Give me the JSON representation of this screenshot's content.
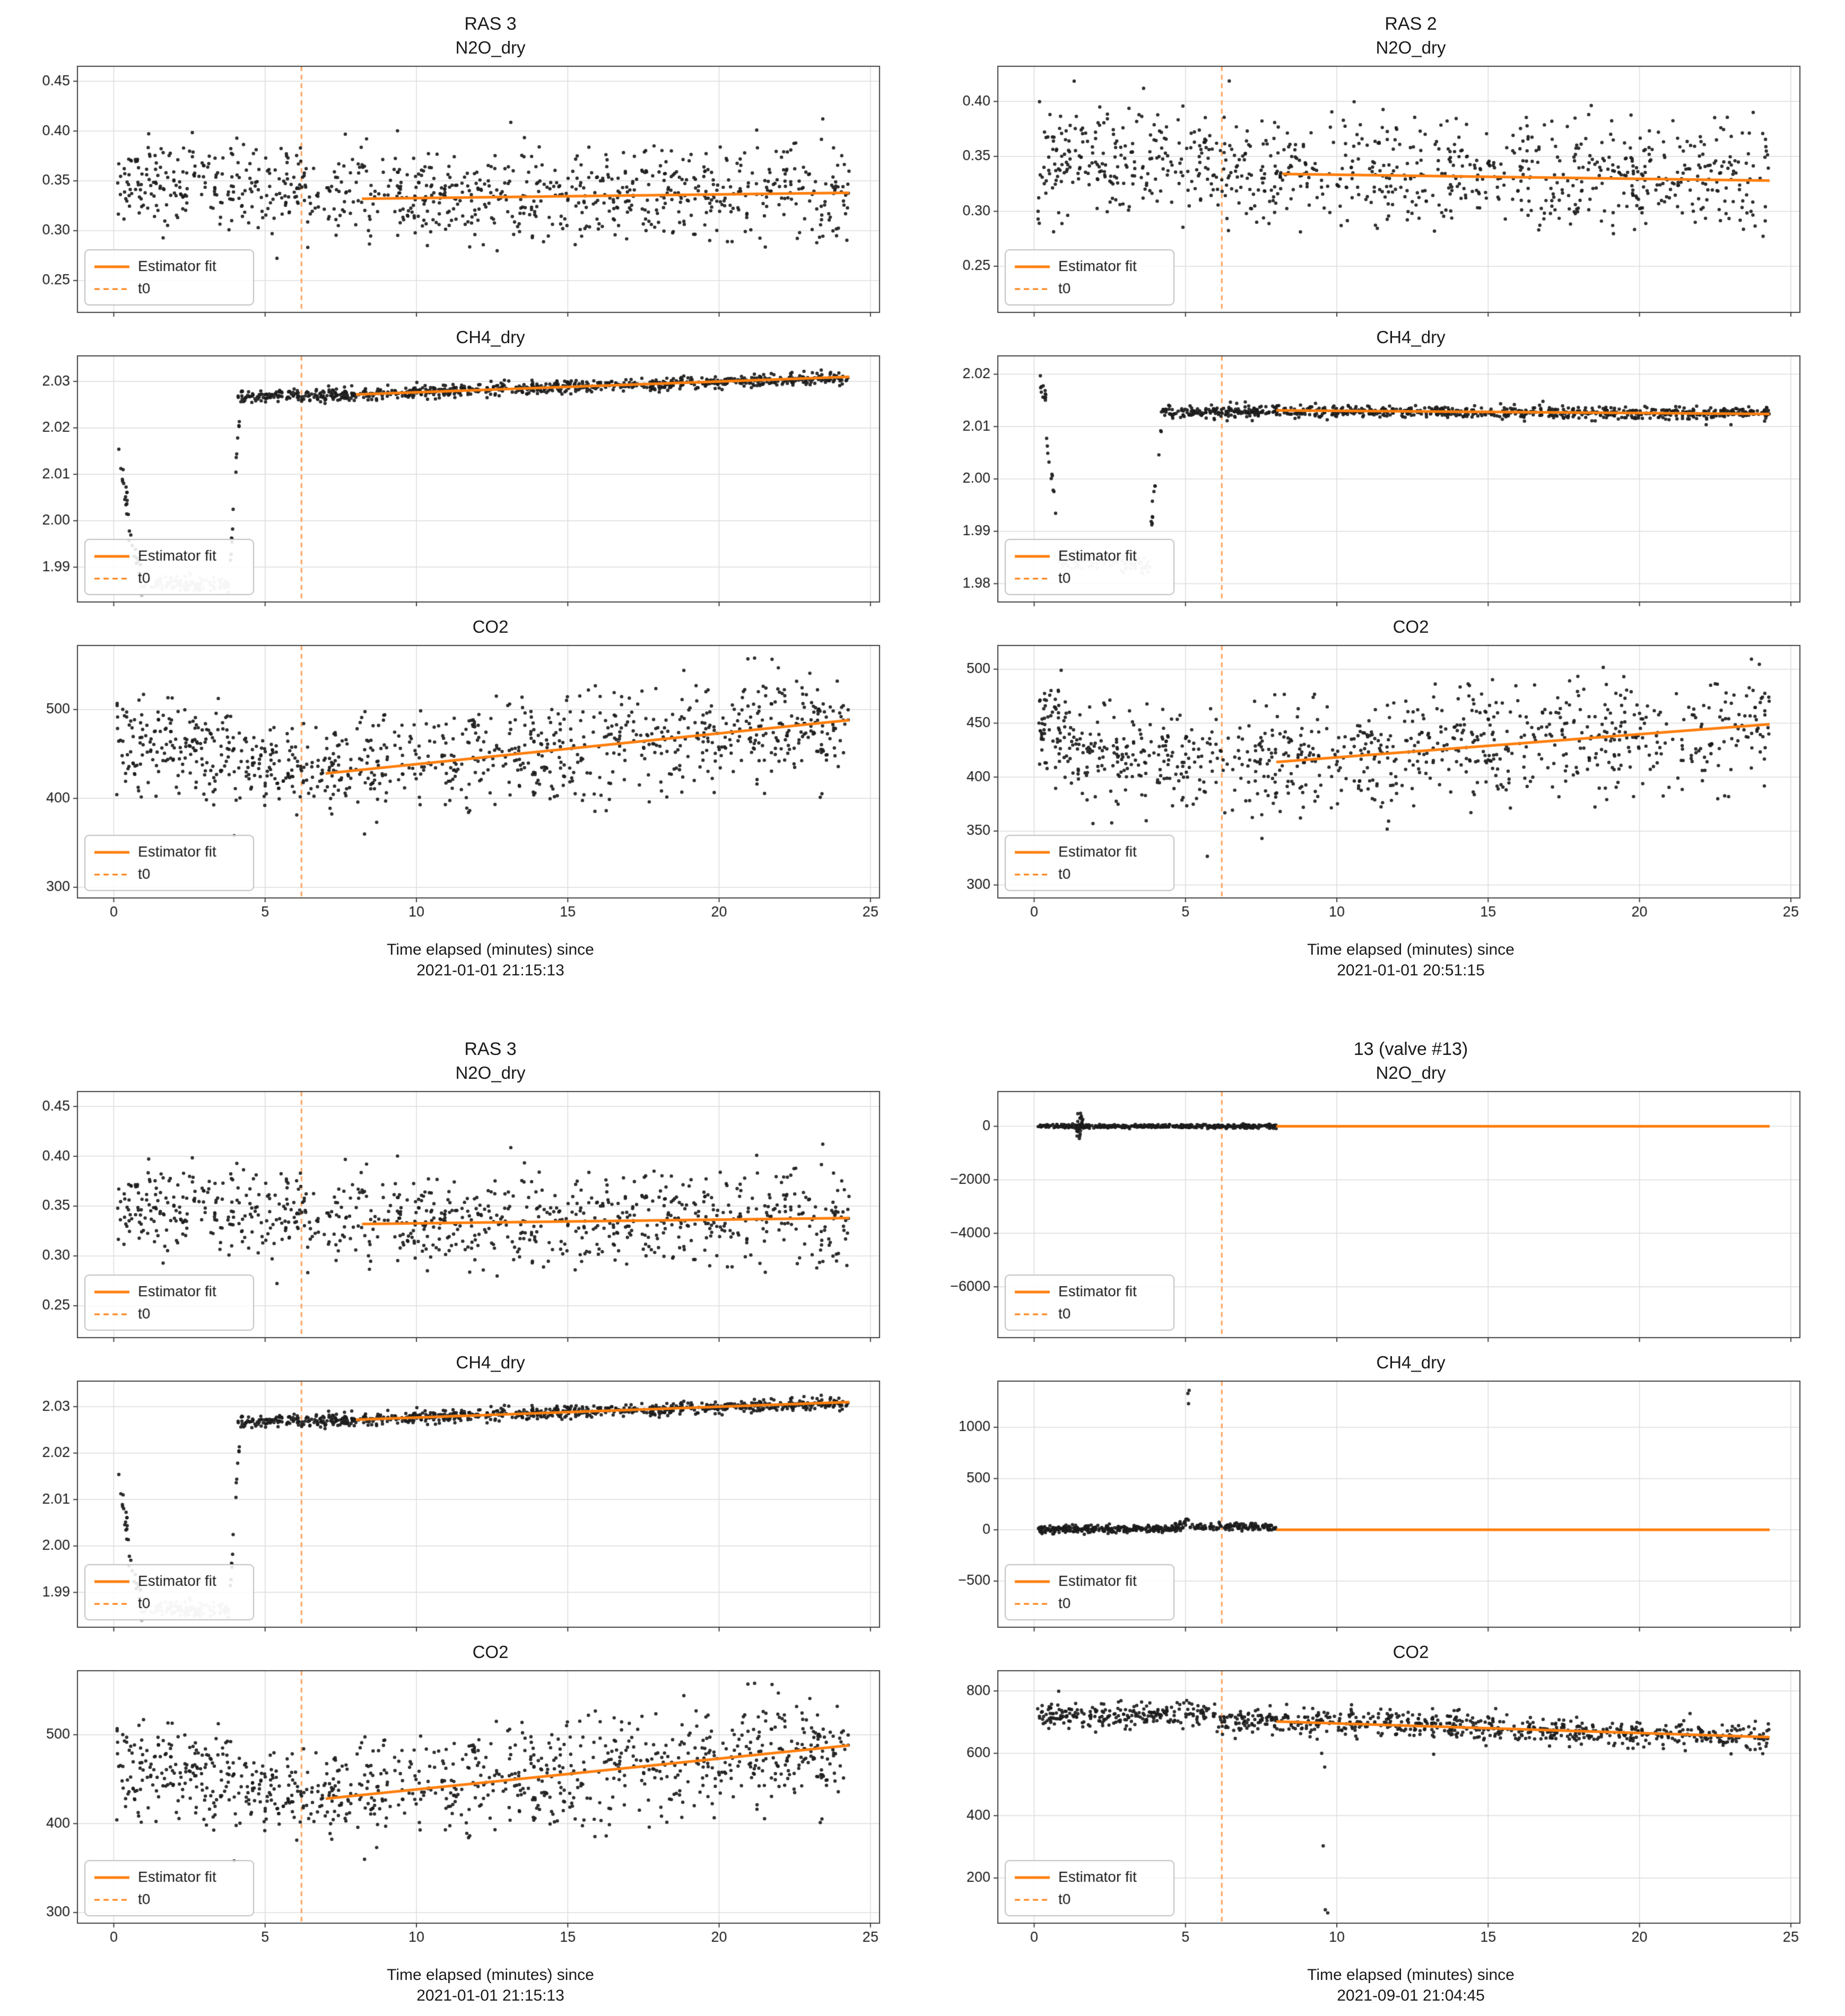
{
  "colors": {
    "accent_orange": "#ff7f0e",
    "t0_orange": "#ffa25c",
    "scatter_black": "#1c1c1c",
    "gray_segment": "#b4b4b4",
    "grid": "#dcdcdc",
    "spine": "#3f3f3f",
    "text": "#1a1a1a",
    "legend_border": "#c0c0c0"
  },
  "legend": {
    "fit_label": "Estimator fit",
    "t0_label": "t0"
  },
  "chart_data": [
    {
      "type": "scatter",
      "title": "RAS 3",
      "xlabel_line1": "Time elapsed (minutes) since",
      "xlabel_line2": "2021-01-01 21:15:13",
      "xlim": [
        -1.2,
        25.3
      ],
      "xticks": [
        0,
        5,
        10,
        15,
        20,
        25
      ],
      "xtick_labels": [
        "0",
        "5",
        "10",
        "15",
        "20",
        "25"
      ],
      "t0": 6.2,
      "subplots": [
        {
          "title": "N2O_dry",
          "ylim": [
            0.218,
            0.465
          ],
          "yticks": [
            0.25,
            0.3,
            0.35,
            0.4,
            0.45
          ],
          "ytick_labels": [
            "0.25",
            "0.30",
            "0.35",
            "0.40",
            "0.45"
          ],
          "fit": {
            "x": [
              8.2,
              24.3
            ],
            "y": [
              0.332,
              0.338
            ]
          },
          "scatter": [
            {
              "x0": 0.1,
              "x1": 6.2,
              "y0": 0.348,
              "y1": 0.344,
              "std": 0.02,
              "n": 230
            },
            {
              "x0": 6.2,
              "x1": 24.3,
              "y0": 0.337,
              "y1": 0.336,
              "std": 0.024,
              "n": 640
            }
          ],
          "points": [],
          "show_xticklabels": false
        },
        {
          "title": "CH4_dry",
          "ylim": [
            1.9825,
            2.0355
          ],
          "yticks": [
            1.99,
            2.0,
            2.01,
            2.02,
            2.03
          ],
          "ytick_labels": [
            "1.99",
            "2.00",
            "2.01",
            "2.02",
            "2.03"
          ],
          "fit": {
            "x": [
              8.0,
              24.3
            ],
            "y": [
              2.0272,
              2.031
            ]
          },
          "scatter": [
            {
              "x0": 0.15,
              "x1": 0.5,
              "y0": 2.013,
              "y1": 2.002,
              "std": 0.0015,
              "n": 16
            },
            {
              "x0": 0.5,
              "x1": 0.9,
              "y0": 1.998,
              "y1": 1.988,
              "std": 0.0015,
              "n": 12
            },
            {
              "x0": 0.9,
              "x1": 3.85,
              "y0": 1.9865,
              "y1": 1.986,
              "std": 0.0009,
              "n": 110,
              "color": "#b4b4b4"
            },
            {
              "x0": 3.85,
              "x1": 4.15,
              "y0": 1.992,
              "y1": 2.022,
              "std": 0.002,
              "n": 14
            },
            {
              "x0": 4.1,
              "x1": 8.0,
              "y0": 2.0267,
              "y1": 2.0272,
              "std": 0.0007,
              "n": 170
            },
            {
              "x0": 8.0,
              "x1": 24.3,
              "y0": 2.0272,
              "y1": 2.0308,
              "std": 0.0007,
              "n": 620
            }
          ],
          "points": [],
          "show_xticklabels": false
        },
        {
          "title": "CO2",
          "ylim": [
            288,
            572
          ],
          "yticks": [
            300,
            400,
            500
          ],
          "ytick_labels": [
            "300",
            "400",
            "500"
          ],
          "fit": {
            "x": [
              7.0,
              24.3
            ],
            "y": [
              428,
              488
            ]
          },
          "scatter": [
            {
              "x0": 0.1,
              "x1": 4.0,
              "y0": 462,
              "y1": 452,
              "std": 28,
              "n": 180
            },
            {
              "x0": 4.0,
              "x1": 8.0,
              "y0": 432,
              "y1": 434,
              "std": 22,
              "n": 160
            },
            {
              "x0": 8.0,
              "x1": 24.3,
              "y0": 436,
              "y1": 486,
              "std": 30,
              "n": 620
            }
          ],
          "points": [],
          "show_xticklabels": true
        }
      ]
    },
    {
      "type": "scatter",
      "title": "RAS 2",
      "xlabel_line1": "Time elapsed (minutes) since",
      "xlabel_line2": "2021-01-01 20:51:15",
      "xlim": [
        -1.2,
        25.3
      ],
      "xticks": [
        0,
        5,
        10,
        15,
        20,
        25
      ],
      "xtick_labels": [
        "0",
        "5",
        "10",
        "15",
        "20",
        "25"
      ],
      "t0": 6.2,
      "subplots": [
        {
          "title": "N2O_dry",
          "ylim": [
            0.208,
            0.432
          ],
          "yticks": [
            0.25,
            0.3,
            0.35,
            0.4
          ],
          "ytick_labels": [
            "0.25",
            "0.30",
            "0.35",
            "0.40"
          ],
          "fit": {
            "x": [
              8.2,
              24.3
            ],
            "y": [
              0.334,
              0.328
            ]
          },
          "scatter": [
            {
              "x0": 0.1,
              "x1": 6.2,
              "y0": 0.35,
              "y1": 0.342,
              "std": 0.024,
              "n": 240
            },
            {
              "x0": 6.2,
              "x1": 24.3,
              "y0": 0.335,
              "y1": 0.327,
              "std": 0.025,
              "n": 640
            }
          ],
          "points": [],
          "show_xticklabels": false
        },
        {
          "title": "CH4_dry",
          "ylim": [
            1.9765,
            2.0235
          ],
          "yticks": [
            1.98,
            1.99,
            2.0,
            2.01,
            2.02
          ],
          "ytick_labels": [
            "1.98",
            "1.99",
            "2.00",
            "2.01",
            "2.02"
          ],
          "fit": {
            "x": [
              8.0,
              24.3
            ],
            "y": [
              2.0131,
              2.0124
            ]
          },
          "scatter": [
            {
              "x0": 0.15,
              "x1": 0.4,
              "y0": 2.02,
              "y1": 2.016,
              "std": 0.0012,
              "n": 12
            },
            {
              "x0": 0.4,
              "x1": 0.8,
              "y0": 2.008,
              "y1": 1.99,
              "std": 0.0015,
              "n": 10
            },
            {
              "x0": 0.8,
              "x1": 3.85,
              "y0": 1.9845,
              "y1": 1.984,
              "std": 0.0009,
              "n": 110,
              "color": "#b4b4b4"
            },
            {
              "x0": 3.85,
              "x1": 4.2,
              "y0": 1.99,
              "y1": 2.008,
              "std": 0.002,
              "n": 12
            },
            {
              "x0": 4.2,
              "x1": 8.0,
              "y0": 2.0126,
              "y1": 2.013,
              "std": 0.0006,
              "n": 170
            },
            {
              "x0": 8.0,
              "x1": 24.3,
              "y0": 2.013,
              "y1": 2.0124,
              "std": 0.0006,
              "n": 620
            }
          ],
          "points": [],
          "show_xticklabels": false
        },
        {
          "title": "CO2",
          "ylim": [
            288,
            522
          ],
          "yticks": [
            300,
            350,
            400,
            450,
            500
          ],
          "ytick_labels": [
            "300",
            "350",
            "400",
            "450",
            "500"
          ],
          "fit": {
            "x": [
              8.0,
              24.3
            ],
            "y": [
              414,
              449
            ]
          },
          "scatter": [
            {
              "x0": 0.1,
              "x1": 1.2,
              "y0": 448,
              "y1": 430,
              "std": 24,
              "n": 70
            },
            {
              "x0": 1.2,
              "x1": 6.2,
              "y0": 426,
              "y1": 410,
              "std": 22,
              "n": 200
            },
            {
              "x0": 6.2,
              "x1": 24.3,
              "y0": 412,
              "y1": 448,
              "std": 26,
              "n": 640
            }
          ],
          "points": [],
          "show_xticklabels": true
        }
      ]
    },
    {
      "type": "scatter",
      "title": "RAS 3",
      "xlabel_line1": "Time elapsed (minutes) since",
      "xlabel_line2": "2021-01-01 21:15:13",
      "xlim": [
        -1.2,
        25.3
      ],
      "xticks": [
        0,
        5,
        10,
        15,
        20,
        25
      ],
      "xtick_labels": [
        "0",
        "5",
        "10",
        "15",
        "20",
        "25"
      ],
      "t0": 6.2,
      "subplots": [
        {
          "title": "N2O_dry",
          "ylim": [
            0.218,
            0.465
          ],
          "yticks": [
            0.25,
            0.3,
            0.35,
            0.4,
            0.45
          ],
          "ytick_labels": [
            "0.25",
            "0.30",
            "0.35",
            "0.40",
            "0.45"
          ],
          "fit": {
            "x": [
              8.2,
              24.3
            ],
            "y": [
              0.332,
              0.338
            ]
          },
          "scatter": [
            {
              "x0": 0.1,
              "x1": 6.2,
              "y0": 0.348,
              "y1": 0.344,
              "std": 0.02,
              "n": 230
            },
            {
              "x0": 6.2,
              "x1": 24.3,
              "y0": 0.337,
              "y1": 0.336,
              "std": 0.024,
              "n": 640
            }
          ],
          "points": [],
          "show_xticklabels": false
        },
        {
          "title": "CH4_dry",
          "ylim": [
            1.9825,
            2.0355
          ],
          "yticks": [
            1.99,
            2.0,
            2.01,
            2.02,
            2.03
          ],
          "ytick_labels": [
            "1.99",
            "2.00",
            "2.01",
            "2.02",
            "2.03"
          ],
          "fit": {
            "x": [
              8.0,
              24.3
            ],
            "y": [
              2.0272,
              2.031
            ]
          },
          "scatter": [
            {
              "x0": 0.15,
              "x1": 0.5,
              "y0": 2.013,
              "y1": 2.002,
              "std": 0.0015,
              "n": 16
            },
            {
              "x0": 0.5,
              "x1": 0.9,
              "y0": 1.998,
              "y1": 1.988,
              "std": 0.0015,
              "n": 12
            },
            {
              "x0": 0.9,
              "x1": 3.85,
              "y0": 1.9865,
              "y1": 1.986,
              "std": 0.0009,
              "n": 110,
              "color": "#b4b4b4"
            },
            {
              "x0": 3.85,
              "x1": 4.15,
              "y0": 1.992,
              "y1": 2.022,
              "std": 0.002,
              "n": 14
            },
            {
              "x0": 4.1,
              "x1": 8.0,
              "y0": 2.0267,
              "y1": 2.0272,
              "std": 0.0007,
              "n": 170
            },
            {
              "x0": 8.0,
              "x1": 24.3,
              "y0": 2.0272,
              "y1": 2.0308,
              "std": 0.0007,
              "n": 620
            }
          ],
          "points": [],
          "show_xticklabels": false
        },
        {
          "title": "CO2",
          "ylim": [
            288,
            572
          ],
          "yticks": [
            300,
            400,
            500
          ],
          "ytick_labels": [
            "300",
            "400",
            "500"
          ],
          "fit": {
            "x": [
              7.0,
              24.3
            ],
            "y": [
              428,
              488
            ]
          },
          "scatter": [
            {
              "x0": 0.1,
              "x1": 4.0,
              "y0": 462,
              "y1": 452,
              "std": 28,
              "n": 180
            },
            {
              "x0": 4.0,
              "x1": 8.0,
              "y0": 432,
              "y1": 434,
              "std": 22,
              "n": 160
            },
            {
              "x0": 8.0,
              "x1": 24.3,
              "y0": 436,
              "y1": 486,
              "std": 30,
              "n": 620
            }
          ],
          "points": [],
          "show_xticklabels": true
        }
      ]
    },
    {
      "type": "scatter",
      "title": "13 (valve #13)",
      "xlabel_line1": "Time elapsed (minutes) since",
      "xlabel_line2": "2021-09-01 21:04:45",
      "xlim": [
        -1.2,
        25.3
      ],
      "xticks": [
        0,
        5,
        10,
        15,
        20,
        25
      ],
      "xtick_labels": [
        "0",
        "5",
        "10",
        "15",
        "20",
        "25"
      ],
      "t0": 6.2,
      "subplots": [
        {
          "title": "N2O_dry",
          "ylim": [
            -7900,
            1300
          ],
          "yticks": [
            0,
            -2000,
            -4000,
            -6000
          ],
          "ytick_labels": [
            "0",
            "−2000",
            "−4000",
            "−6000"
          ],
          "fit": {
            "x": [
              8.0,
              24.3
            ],
            "y": [
              0,
              0
            ]
          },
          "scatter": [
            {
              "x0": 0.1,
              "x1": 8.0,
              "y0": 0,
              "y1": 0,
              "std": 35,
              "n": 420
            },
            {
              "x0": 1.4,
              "x1": 1.65,
              "y0": 0,
              "y1": 0,
              "std": 260,
              "n": 30
            }
          ],
          "points": [],
          "show_xticklabels": false
        },
        {
          "title": "CH4_dry",
          "ylim": [
            -950,
            1450
          ],
          "yticks": [
            -500,
            0,
            500,
            1000
          ],
          "ytick_labels": [
            "−500",
            "0",
            "500",
            "1000"
          ],
          "fit": {
            "x": [
              8.0,
              24.3
            ],
            "y": [
              0,
              0
            ]
          },
          "scatter": [
            {
              "x0": 0.1,
              "x1": 4.6,
              "y0": 5,
              "y1": 5,
              "std": 18,
              "n": 260
            },
            {
              "x0": 4.6,
              "x1": 5.1,
              "y0": 20,
              "y1": 80,
              "std": 25,
              "n": 30
            },
            {
              "x0": 5.15,
              "x1": 8.0,
              "y0": 30,
              "y1": 30,
              "std": 18,
              "n": 120
            }
          ],
          "points": [
            [
              5.08,
              1330
            ],
            [
              5.12,
              1360
            ],
            [
              5.1,
              1230
            ]
          ],
          "show_xticklabels": false
        },
        {
          "title": "CO2",
          "ylim": [
            55,
            865
          ],
          "yticks": [
            200,
            400,
            600,
            800
          ],
          "ytick_labels": [
            "200",
            "400",
            "600",
            "800"
          ],
          "fit": {
            "x": [
              8.0,
              24.3
            ],
            "y": [
              702,
              652
            ]
          },
          "scatter": [
            {
              "x0": 0.1,
              "x1": 6.0,
              "y0": 722,
              "y1": 726,
              "std": 22,
              "n": 240
            },
            {
              "x0": 6.0,
              "x1": 24.3,
              "y0": 706,
              "y1": 650,
              "std": 22,
              "n": 660
            }
          ],
          "points": [
            [
              9.5,
              600
            ],
            [
              9.6,
              556
            ],
            [
              9.55,
              303
            ],
            [
              9.62,
              98
            ],
            [
              9.7,
              88
            ],
            [
              13.2,
              597
            ]
          ],
          "show_xticklabels": true
        }
      ]
    }
  ]
}
